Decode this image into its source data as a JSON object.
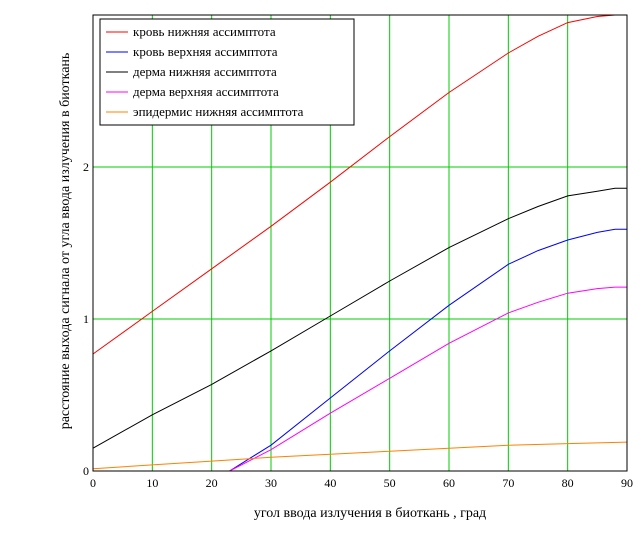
{
  "chart_data": {
    "type": "line",
    "xlabel": "угол ввода излучения в биоткань , град",
    "ylabel": "расстояние выхода сигнала от угла ввода излучения в биоткань",
    "xlim": [
      0,
      90
    ],
    "ylim": [
      0,
      3
    ],
    "xticks": [
      "0",
      "10",
      "20",
      "30",
      "40",
      "50",
      "60",
      "70",
      "80",
      "90"
    ],
    "yticks": [
      {
        "value": 0,
        "label": "0"
      },
      {
        "value": 1,
        "label": "1"
      },
      {
        "value": 2,
        "label": "2"
      }
    ],
    "grid": true,
    "grid_color": "#00cc00",
    "legend_position": "top-left",
    "series": [
      {
        "name": "кровь нижняя ассимптота",
        "color": "#ff0000",
        "x": [
          0,
          10,
          20,
          30,
          40,
          50,
          60,
          70,
          75,
          80,
          85,
          88,
          90
        ],
        "y": [
          0.77,
          1.05,
          1.33,
          1.61,
          1.9,
          2.2,
          2.49,
          2.75,
          2.86,
          2.95,
          2.99,
          3.0,
          3.0
        ]
      },
      {
        "name": "кровь верхняя ассимптота",
        "color": "#0000ff",
        "x": [
          23,
          30,
          40,
          50,
          60,
          70,
          75,
          80,
          85,
          88,
          90
        ],
        "y": [
          0.0,
          0.17,
          0.48,
          0.79,
          1.09,
          1.36,
          1.45,
          1.52,
          1.57,
          1.59,
          1.59
        ]
      },
      {
        "name": "дерма нижняя ассимптота",
        "color": "#000000",
        "x": [
          0,
          10,
          20,
          30,
          40,
          50,
          60,
          70,
          75,
          80,
          85,
          88,
          90
        ],
        "y": [
          0.15,
          0.37,
          0.57,
          0.79,
          1.02,
          1.25,
          1.47,
          1.66,
          1.74,
          1.81,
          1.84,
          1.86,
          1.86
        ]
      },
      {
        "name": "дерма верхняя ассимптота",
        "color": "#ff00ff",
        "x": [
          23,
          30,
          40,
          50,
          60,
          70,
          75,
          80,
          85,
          88,
          90
        ],
        "y": [
          0.0,
          0.14,
          0.38,
          0.61,
          0.84,
          1.04,
          1.11,
          1.17,
          1.2,
          1.21,
          1.21
        ]
      },
      {
        "name": "эпидермис нижняя ассимптота",
        "color": "#ff8000",
        "x": [
          0,
          10,
          20,
          30,
          40,
          50,
          60,
          70,
          80,
          90
        ],
        "y": [
          0.015,
          0.04,
          0.065,
          0.09,
          0.11,
          0.13,
          0.15,
          0.17,
          0.18,
          0.19
        ]
      }
    ]
  }
}
